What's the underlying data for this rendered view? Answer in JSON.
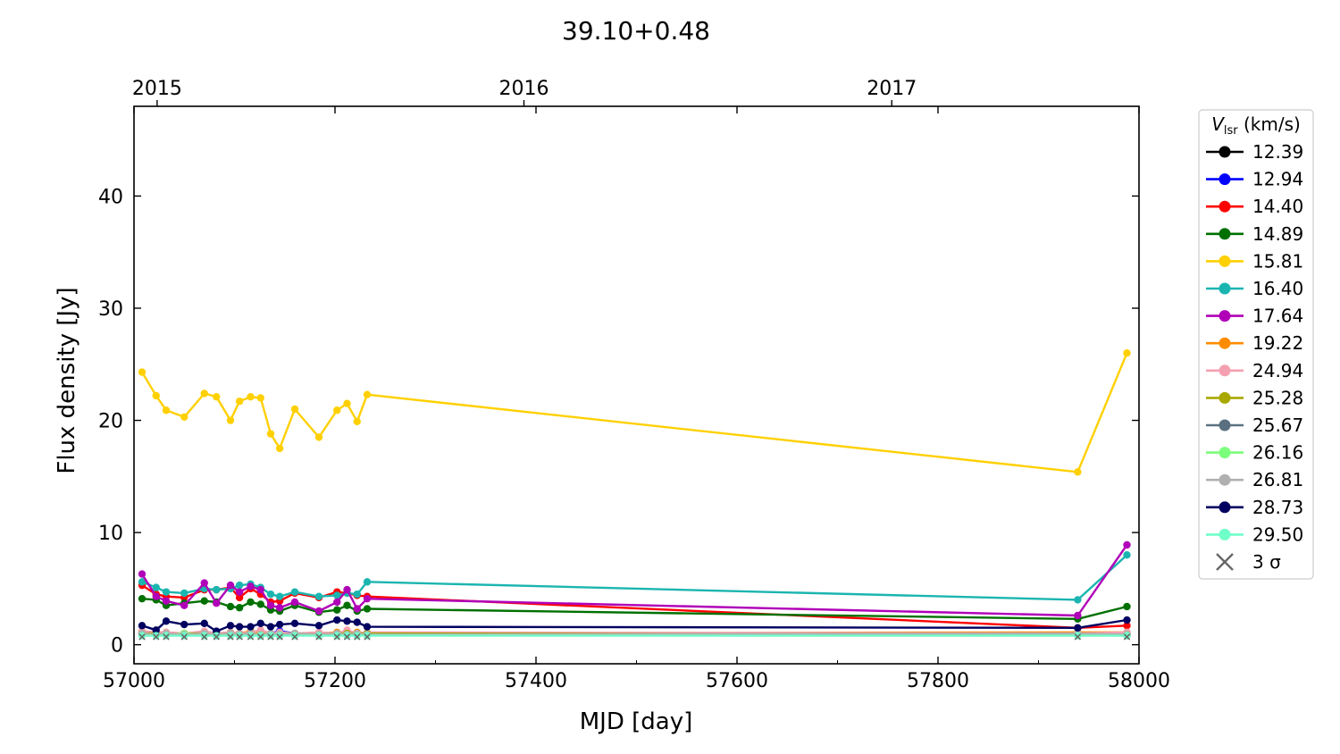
{
  "chart_data": {
    "type": "line",
    "title": "39.10+0.48",
    "xlabel": "MJD [day]",
    "ylabel": "Flux density [Jy]",
    "xlim": [
      57000,
      58000
    ],
    "ylim": [
      -1.7,
      48
    ],
    "x_ticks": [
      57000,
      57200,
      57400,
      57600,
      57800,
      58000
    ],
    "y_ticks": [
      0,
      10,
      20,
      30,
      40
    ],
    "top_axis": {
      "ticks": [
        {
          "label": "2015",
          "mjd": 57023
        },
        {
          "label": "2016",
          "mjd": 57388
        },
        {
          "label": "2017",
          "mjd": 57754
        }
      ]
    },
    "legend": {
      "title_main": "V",
      "title_sub": "lsr",
      "title_unit": " (km/s)",
      "placement": "right-outside",
      "sigma_label": "3 σ",
      "sigma_color": "#666666"
    },
    "x": [
      57008,
      57022,
      57032,
      57050,
      57070,
      57082,
      57096,
      57105,
      57116,
      57126,
      57136,
      57145,
      57160,
      57184,
      57202,
      57212,
      57222,
      57232,
      57939,
      57988
    ],
    "series": [
      {
        "name": "12.39",
        "color": "#000000",
        "values": [
          1.1,
          1.0,
          1.0,
          1.0,
          1.0,
          1.0,
          1.0,
          1.0,
          1.0,
          1.0,
          1.0,
          1.0,
          1.0,
          1.0,
          1.0,
          1.0,
          1.0,
          1.0,
          1.0,
          0.9
        ]
      },
      {
        "name": "12.94",
        "color": "#0000ff",
        "values": [
          1.0,
          0.9,
          1.0,
          0.9,
          1.0,
          0.9,
          1.0,
          0.9,
          1.0,
          0.9,
          1.0,
          1.2,
          1.0,
          0.9,
          1.0,
          1.0,
          0.9,
          1.0,
          1.0,
          1.0
        ]
      },
      {
        "name": "14.40",
        "color": "#ff0000",
        "values": [
          5.3,
          4.5,
          4.3,
          4.2,
          4.9,
          4.9,
          5.1,
          4.2,
          5.0,
          4.5,
          3.8,
          3.9,
          4.6,
          4.2,
          4.7,
          4.6,
          4.4,
          4.3,
          1.5,
          1.7
        ]
      },
      {
        "name": "14.89",
        "color": "#007000",
        "values": [
          4.1,
          4.0,
          3.5,
          3.7,
          3.9,
          3.8,
          3.4,
          3.3,
          3.8,
          3.6,
          3.1,
          3.0,
          3.5,
          2.9,
          3.1,
          3.5,
          3.0,
          3.2,
          2.3,
          3.4
        ]
      },
      {
        "name": "15.81",
        "color": "#ffd000",
        "values": [
          24.3,
          22.2,
          20.9,
          20.3,
          22.4,
          22.1,
          20.0,
          21.7,
          22.1,
          22.0,
          18.8,
          17.5,
          21.0,
          18.5,
          20.9,
          21.5,
          19.9,
          22.3,
          15.4,
          26.0
        ]
      },
      {
        "name": "16.40",
        "color": "#1bb5b0",
        "values": [
          5.6,
          5.1,
          4.7,
          4.6,
          5.0,
          4.9,
          5.0,
          5.3,
          5.4,
          5.1,
          4.5,
          4.3,
          4.7,
          4.3,
          4.4,
          4.6,
          4.5,
          5.6,
          4.0,
          8.0
        ]
      },
      {
        "name": "17.64",
        "color": "#b000b8",
        "values": [
          6.3,
          4.3,
          3.9,
          3.5,
          5.5,
          3.7,
          5.3,
          4.7,
          5.2,
          4.9,
          3.5,
          3.3,
          3.8,
          3.0,
          3.8,
          4.9,
          3.2,
          4.1,
          2.6,
          8.9
        ]
      },
      {
        "name": "19.22",
        "color": "#ff8c00",
        "values": [
          1.2,
          1.1,
          1.1,
          1.0,
          1.1,
          1.0,
          1.1,
          1.0,
          1.2,
          1.0,
          1.0,
          0.9,
          1.0,
          1.0,
          1.1,
          1.0,
          1.1,
          1.0,
          1.1,
          1.1
        ]
      },
      {
        "name": "24.94",
        "color": "#f4a0b0",
        "values": [
          1.2,
          1.1,
          1.1,
          1.0,
          1.2,
          1.0,
          1.1,
          1.0,
          1.1,
          1.3,
          1.0,
          1.1,
          1.0,
          1.1,
          1.0,
          1.3,
          1.0,
          1.1,
          1.0,
          1.1
        ]
      },
      {
        "name": "25.28",
        "color": "#a8a800",
        "values": [
          1.0,
          1.0,
          0.9,
          1.0,
          1.0,
          0.9,
          1.0,
          0.9,
          1.0,
          0.9,
          0.9,
          0.9,
          1.0,
          0.9,
          1.0,
          1.0,
          1.0,
          1.0,
          0.9,
          0.9
        ]
      },
      {
        "name": "25.67",
        "color": "#5a7080",
        "values": [
          0.9,
          0.9,
          0.9,
          0.9,
          0.9,
          0.8,
          0.9,
          0.9,
          0.9,
          0.8,
          0.9,
          0.8,
          0.9,
          0.8,
          0.9,
          0.9,
          0.9,
          0.9,
          0.9,
          0.8
        ]
      },
      {
        "name": "26.16",
        "color": "#7cff7c",
        "values": [
          0.9,
          0.9,
          0.9,
          1.0,
          0.9,
          0.9,
          0.9,
          0.9,
          0.9,
          0.9,
          0.9,
          0.9,
          0.9,
          0.9,
          0.9,
          0.9,
          0.9,
          0.9,
          0.9,
          0.9
        ]
      },
      {
        "name": "26.81",
        "color": "#b0b0b0",
        "values": [
          1.0,
          0.9,
          1.0,
          0.9,
          1.0,
          0.9,
          1.0,
          0.9,
          1.0,
          0.9,
          1.0,
          0.9,
          1.0,
          0.9,
          1.0,
          0.9,
          1.0,
          0.9,
          1.0,
          0.9
        ]
      },
      {
        "name": "28.73",
        "color": "#000060",
        "values": [
          1.7,
          1.3,
          2.1,
          1.8,
          1.9,
          1.2,
          1.7,
          1.6,
          1.6,
          1.9,
          1.6,
          1.8,
          1.9,
          1.7,
          2.2,
          2.1,
          2.0,
          1.6,
          1.5,
          2.2
        ]
      },
      {
        "name": "29.50",
        "color": "#6fffc8",
        "values": [
          0.8,
          0.8,
          0.8,
          0.8,
          0.8,
          0.8,
          0.8,
          0.8,
          0.8,
          0.8,
          0.8,
          0.8,
          0.8,
          0.8,
          0.8,
          0.8,
          0.8,
          0.8,
          0.8,
          0.8
        ]
      }
    ],
    "sigma3": {
      "x": [
        57008,
        57022,
        57032,
        57050,
        57070,
        57082,
        57096,
        57105,
        57116,
        57126,
        57136,
        57145,
        57160,
        57184,
        57202,
        57212,
        57222,
        57232,
        57939,
        57988
      ],
      "values": [
        0.7,
        0.7,
        0.7,
        0.7,
        0.7,
        0.7,
        0.7,
        0.7,
        0.7,
        0.7,
        0.7,
        0.7,
        0.7,
        0.7,
        0.7,
        0.7,
        0.7,
        0.7,
        0.7,
        0.7
      ]
    }
  }
}
